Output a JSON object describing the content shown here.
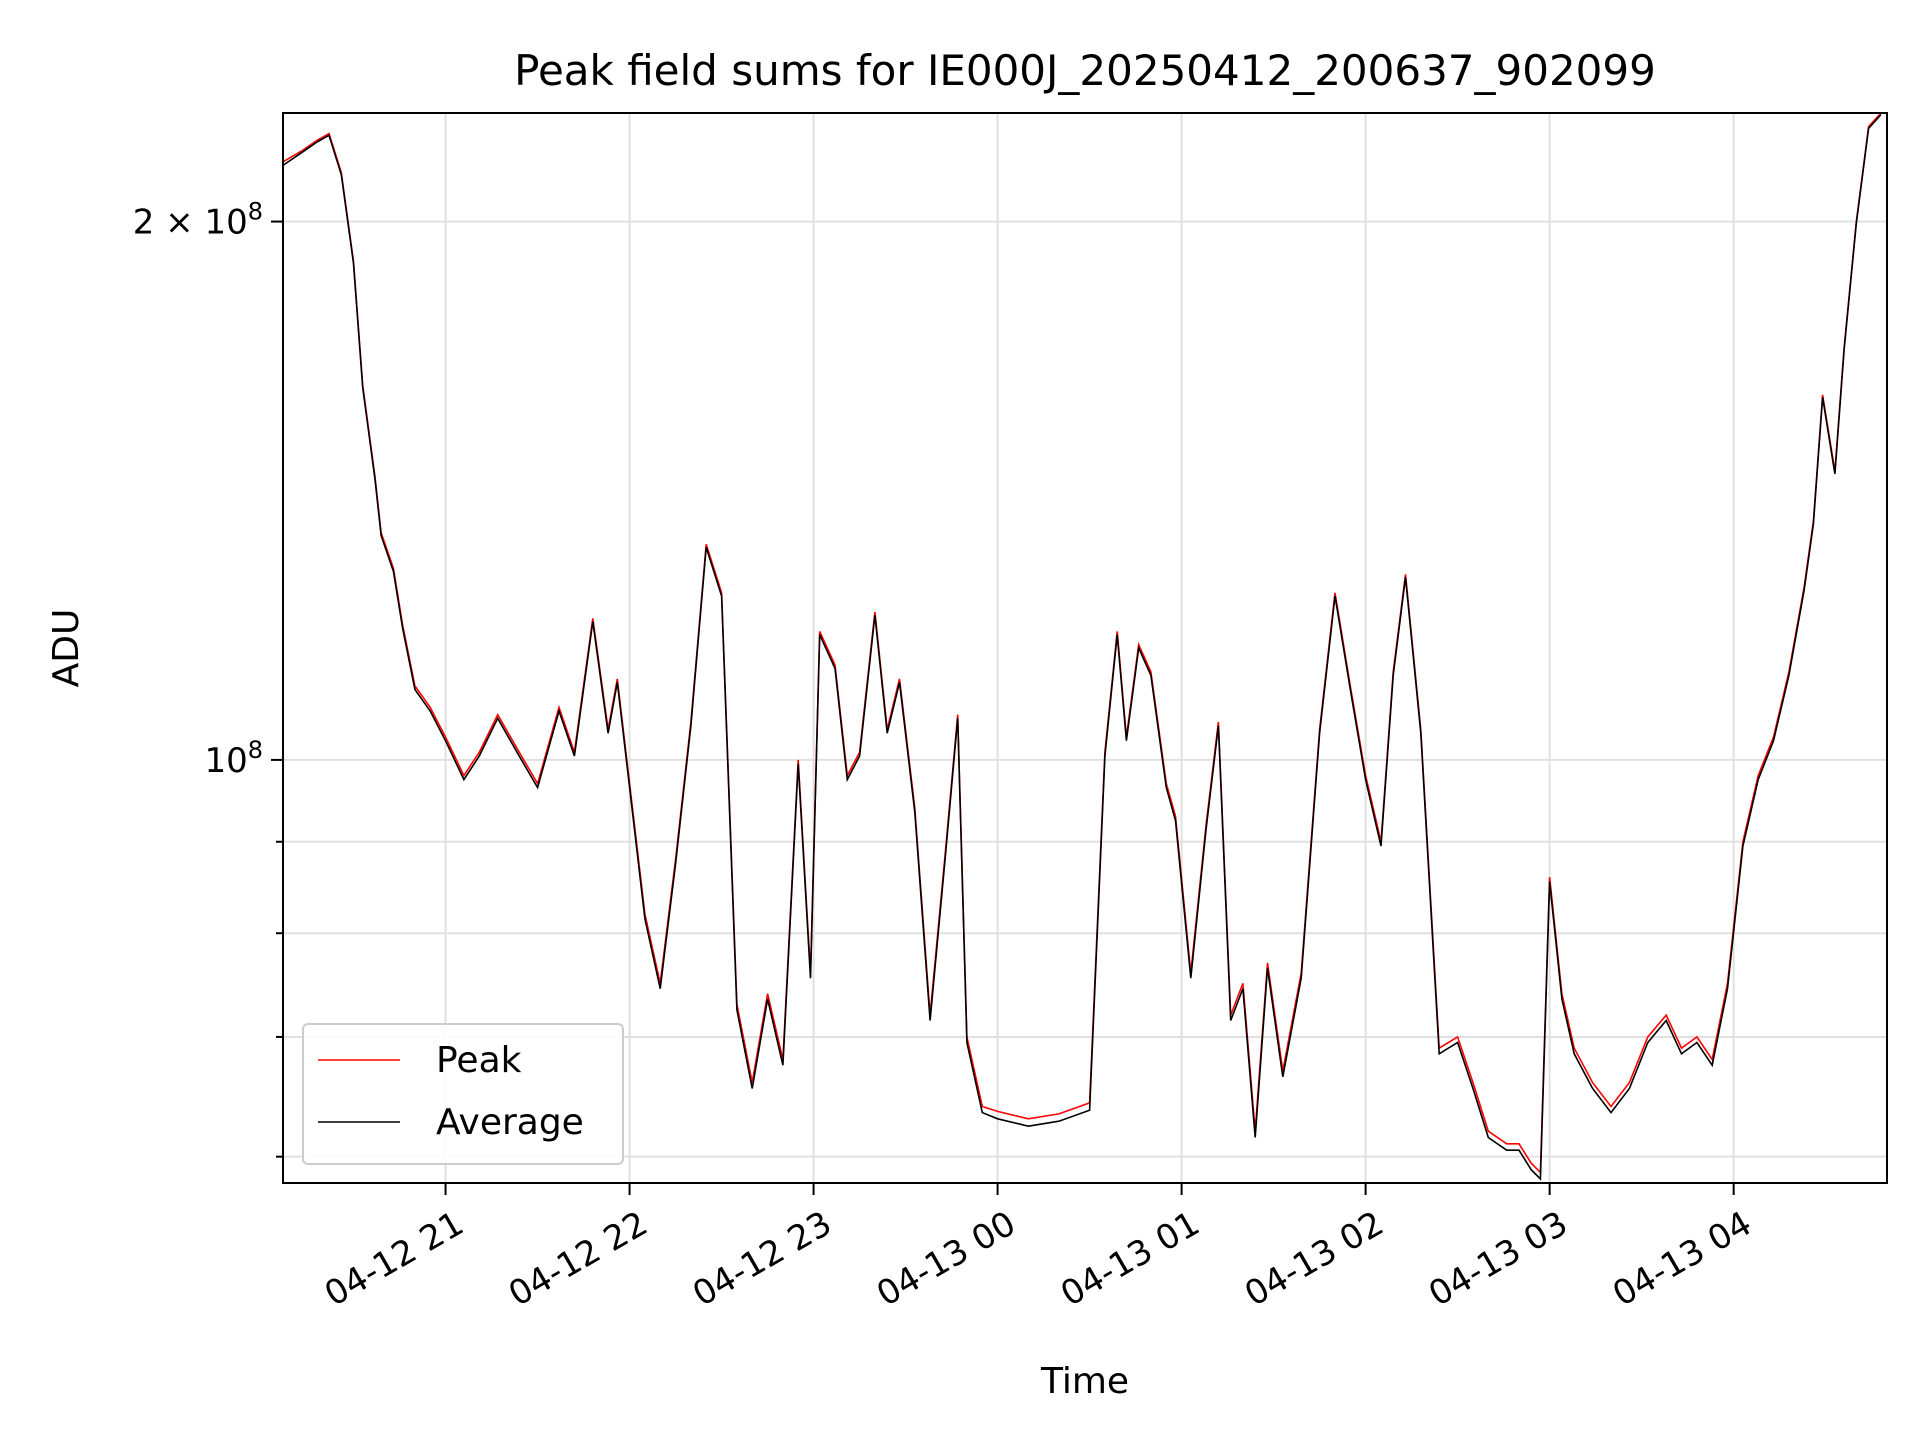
{
  "chart_data": {
    "type": "line",
    "title": "Peak field sums for IE000J_20250412_200637_902099",
    "xlabel": "Time",
    "ylabel": "ADU",
    "yscale": "log",
    "ylim": [
      58000000,
      230000000
    ],
    "xlim": [
      "2025-04-12 20:07",
      "2025-04-13 04:50"
    ],
    "xticks": [
      {
        "at": "2025-04-12 21:00",
        "label": "04-12 21"
      },
      {
        "at": "2025-04-12 22:00",
        "label": "04-12 22"
      },
      {
        "at": "2025-04-12 23:00",
        "label": "04-12 23"
      },
      {
        "at": "2025-04-13 00:00",
        "label": "04-13 00"
      },
      {
        "at": "2025-04-13 01:00",
        "label": "04-13 01"
      },
      {
        "at": "2025-04-13 02:00",
        "label": "04-13 02"
      },
      {
        "at": "2025-04-13 03:00",
        "label": "04-13 03"
      },
      {
        "at": "2025-04-13 04:00",
        "label": "04-13 04"
      }
    ],
    "yticks_major": [
      {
        "value": 100000000,
        "base": "10",
        "exp": "8",
        "coef": ""
      },
      {
        "value": 200000000,
        "base": "10",
        "exp": "8",
        "coef": "2 × "
      }
    ],
    "yticks_minor": [
      60000000,
      70000000,
      80000000,
      90000000
    ],
    "grid": true,
    "legend": {
      "position": "lower-left",
      "entries": [
        "Peak",
        "Average"
      ]
    },
    "colors": {
      "peak": "#ff0000",
      "average": "#000000"
    },
    "x": [
      "2025-04-12 20:07",
      "2025-04-12 20:13",
      "2025-04-12 20:18",
      "2025-04-12 20:22",
      "2025-04-12 20:26",
      "2025-04-12 20:30",
      "2025-04-12 20:33",
      "2025-04-12 20:37",
      "2025-04-12 20:39",
      "2025-04-12 20:43",
      "2025-04-12 20:46",
      "2025-04-12 20:50",
      "2025-04-12 20:55",
      "2025-04-12 21:00",
      "2025-04-12 21:06",
      "2025-04-12 21:11",
      "2025-04-12 21:17",
      "2025-04-12 21:24",
      "2025-04-12 21:30",
      "2025-04-12 21:37",
      "2025-04-12 21:42",
      "2025-04-12 21:48",
      "2025-04-12 21:53",
      "2025-04-12 21:56",
      "2025-04-12 22:00",
      "2025-04-12 22:05",
      "2025-04-12 22:10",
      "2025-04-12 22:15",
      "2025-04-12 22:20",
      "2025-04-12 22:25",
      "2025-04-12 22:30",
      "2025-04-12 22:35",
      "2025-04-12 22:40",
      "2025-04-12 22:45",
      "2025-04-12 22:50",
      "2025-04-12 22:55",
      "2025-04-12 22:59",
      "2025-04-12 23:02",
      "2025-04-12 23:07",
      "2025-04-12 23:11",
      "2025-04-12 23:15",
      "2025-04-12 23:20",
      "2025-04-12 23:24",
      "2025-04-12 23:28",
      "2025-04-12 23:33",
      "2025-04-12 23:38",
      "2025-04-12 23:43",
      "2025-04-12 23:47",
      "2025-04-12 23:50",
      "2025-04-12 23:55",
      "2025-04-13 00:00",
      "2025-04-13 00:10",
      "2025-04-13 00:20",
      "2025-04-13 00:30",
      "2025-04-13 00:35",
      "2025-04-13 00:39",
      "2025-04-13 00:42",
      "2025-04-13 00:46",
      "2025-04-13 00:50",
      "2025-04-13 00:55",
      "2025-04-13 00:58",
      "2025-04-13 01:03",
      "2025-04-13 01:08",
      "2025-04-13 01:12",
      "2025-04-13 01:16",
      "2025-04-13 01:20",
      "2025-04-13 01:24",
      "2025-04-13 01:28",
      "2025-04-13 01:33",
      "2025-04-13 01:39",
      "2025-04-13 01:45",
      "2025-04-13 01:50",
      "2025-04-13 01:55",
      "2025-04-13 02:00",
      "2025-04-13 02:05",
      "2025-04-13 02:09",
      "2025-04-13 02:13",
      "2025-04-13 02:18",
      "2025-04-13 02:24",
      "2025-04-13 02:30",
      "2025-04-13 02:35",
      "2025-04-13 02:40",
      "2025-04-13 02:46",
      "2025-04-13 02:50",
      "2025-04-13 02:54",
      "2025-04-13 02:57",
      "2025-04-13 03:00",
      "2025-04-13 03:04",
      "2025-04-13 03:08",
      "2025-04-13 03:14",
      "2025-04-13 03:20",
      "2025-04-13 03:26",
      "2025-04-13 03:32",
      "2025-04-13 03:38",
      "2025-04-13 03:43",
      "2025-04-13 03:48",
      "2025-04-13 03:53",
      "2025-04-13 03:58",
      "2025-04-13 04:03",
      "2025-04-13 04:08",
      "2025-04-13 04:13",
      "2025-04-13 04:18",
      "2025-04-13 04:23",
      "2025-04-13 04:26",
      "2025-04-13 04:29",
      "2025-04-13 04:33",
      "2025-04-13 04:36",
      "2025-04-13 04:40",
      "2025-04-13 04:44",
      "2025-04-13 04:48"
    ],
    "series": [
      {
        "name": "Peak",
        "values": [
          216000000,
          219000000,
          222000000,
          224000000,
          213000000,
          190000000,
          162000000,
          144000000,
          134000000,
          128000000,
          119000000,
          110000000,
          107000000,
          103000000,
          98000000,
          101000000,
          106000000,
          101000000,
          97000000,
          107000000,
          101000000,
          120000000,
          104000000,
          111000000,
          97000000,
          82000000,
          75000000,
          88000000,
          105000000,
          132000000,
          124000000,
          73000000,
          66000000,
          74000000,
          68000000,
          100000000,
          76000000,
          118000000,
          113000000,
          98000000,
          101000000,
          121000000,
          104000000,
          111000000,
          94000000,
          72000000,
          89000000,
          106000000,
          70000000,
          64000000,
          63600000,
          63000000,
          63400000,
          64300000,
          101000000,
          118000000,
          103000000,
          116000000,
          112000000,
          97000000,
          93000000,
          76000000,
          92000000,
          105000000,
          72000000,
          75000000,
          62000000,
          77000000,
          67000000,
          76000000,
          104000000,
          124000000,
          110000000,
          98000000,
          90000000,
          112000000,
          127000000,
          104000000,
          69000000,
          70000000,
          66000000,
          62000000,
          61000000,
          61000000,
          59500000,
          58800000,
          86000000,
          74000000,
          69000000,
          66000000,
          64000000,
          66000000,
          70000000,
          72000000,
          69000000,
          70000000,
          68000000,
          75000000,
          90000000,
          98000000,
          103000000,
          112000000,
          125000000,
          136000000,
          160000000,
          145000000,
          170000000,
          200000000,
          226000000,
          230000000
        ]
      },
      {
        "name": "Average",
        "values": [
          215000000,
          218500000,
          221500000,
          223500000,
          212500000,
          189500000,
          161500000,
          143500000,
          133500000,
          127500000,
          118500000,
          109500000,
          106500000,
          102500000,
          97500000,
          100500000,
          105500000,
          100500000,
          96500000,
          106500000,
          100500000,
          119500000,
          103500000,
          110500000,
          96500000,
          81500000,
          74500000,
          87500000,
          104500000,
          131500000,
          123500000,
          72500000,
          65500000,
          73500000,
          67500000,
          99500000,
          75500000,
          117500000,
          112500000,
          97500000,
          100500000,
          120500000,
          103500000,
          110500000,
          93500000,
          71500000,
          88500000,
          105500000,
          69500000,
          63500000,
          63000000,
          62400000,
          62800000,
          63700000,
          100500000,
          117500000,
          102500000,
          115500000,
          111500000,
          96500000,
          92500000,
          75500000,
          91500000,
          104500000,
          71500000,
          74500000,
          61500000,
          76500000,
          66500000,
          75500000,
          103500000,
          123500000,
          109500000,
          97500000,
          89500000,
          111500000,
          126500000,
          103500000,
          68500000,
          69500000,
          65500000,
          61500000,
          60500000,
          60500000,
          59000000,
          58300000,
          85500000,
          73500000,
          68500000,
          65500000,
          63500000,
          65500000,
          69500000,
          71500000,
          68500000,
          69500000,
          67500000,
          74500000,
          89500000,
          97500000,
          102500000,
          111500000,
          124500000,
          135500000,
          159500000,
          144500000,
          169500000,
          199500000,
          225500000,
          229500000
        ]
      }
    ]
  }
}
